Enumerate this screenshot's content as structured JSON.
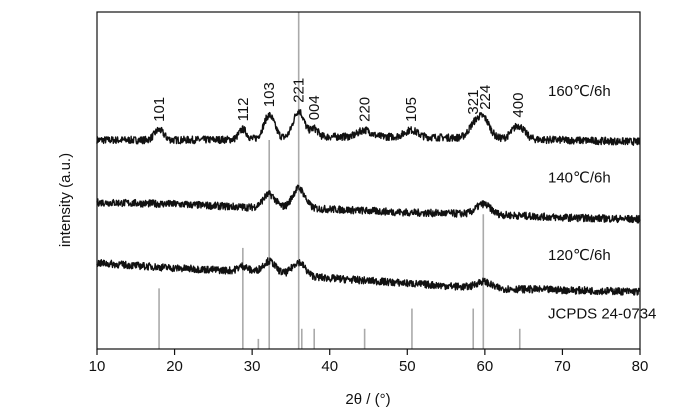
{
  "chart_data": {
    "type": "line",
    "xlabel": "2θ / (°)",
    "ylabel": "intensity (a.u.)",
    "xlim": [
      10,
      80
    ],
    "xticks": [
      10,
      20,
      30,
      40,
      50,
      60,
      70,
      80
    ],
    "grid": false,
    "series": [
      {
        "name": "160℃/6h",
        "color": "#111111",
        "baseline": [
          [
            10,
            0.62
          ],
          [
            20,
            0.62
          ],
          [
            30,
            0.622
          ],
          [
            40,
            0.63
          ],
          [
            50,
            0.63
          ],
          [
            60,
            0.625
          ],
          [
            70,
            0.62
          ],
          [
            80,
            0.615
          ]
        ],
        "peaks": [
          [
            18.0,
            0.03,
            0.6
          ],
          [
            28.8,
            0.03,
            0.5
          ],
          [
            32.2,
            0.07,
            0.7
          ],
          [
            36.0,
            0.08,
            0.7
          ],
          [
            38.0,
            0.025,
            0.5
          ],
          [
            44.5,
            0.02,
            0.8
          ],
          [
            50.5,
            0.02,
            0.8
          ],
          [
            58.5,
            0.03,
            0.7
          ],
          [
            59.8,
            0.06,
            0.8
          ],
          [
            64.3,
            0.04,
            0.8
          ]
        ]
      },
      {
        "name": "140℃/6h",
        "color": "#111111",
        "baseline": [
          [
            10,
            0.435
          ],
          [
            20,
            0.43
          ],
          [
            30,
            0.42
          ],
          [
            40,
            0.415
          ],
          [
            50,
            0.405
          ],
          [
            60,
            0.4
          ],
          [
            70,
            0.39
          ],
          [
            80,
            0.385
          ]
        ],
        "peaks": [
          [
            32.2,
            0.04,
            0.8
          ],
          [
            36.0,
            0.06,
            0.8
          ],
          [
            59.8,
            0.03,
            0.9
          ]
        ]
      },
      {
        "name": "120℃/6h",
        "color": "#111111",
        "baseline": [
          [
            10,
            0.255
          ],
          [
            20,
            0.24
          ],
          [
            30,
            0.23
          ],
          [
            40,
            0.21
          ],
          [
            50,
            0.195
          ],
          [
            60,
            0.18
          ],
          [
            70,
            0.175
          ],
          [
            80,
            0.17
          ]
        ],
        "peaks": [
          [
            28.8,
            0.015,
            0.6
          ],
          [
            32.2,
            0.035,
            0.8
          ],
          [
            36.0,
            0.04,
            0.8
          ],
          [
            59.8,
            0.02,
            0.9
          ]
        ]
      }
    ],
    "reference": {
      "name": "JCPDS 24-0734",
      "color": "#aaaaaa",
      "lines": [
        {
          "x": 18.0,
          "height": 0.18
        },
        {
          "x": 28.8,
          "height": 0.3
        },
        {
          "x": 30.8,
          "height": 0.03
        },
        {
          "x": 32.2,
          "height": 0.62
        },
        {
          "x": 36.0,
          "height": 1.0
        },
        {
          "x": 36.4,
          "height": 0.06
        },
        {
          "x": 38.0,
          "height": 0.06
        },
        {
          "x": 44.5,
          "height": 0.06
        },
        {
          "x": 50.6,
          "height": 0.12
        },
        {
          "x": 58.5,
          "height": 0.12
        },
        {
          "x": 59.8,
          "height": 0.4
        },
        {
          "x": 64.5,
          "height": 0.06
        }
      ]
    },
    "peak_labels": [
      {
        "text": "101",
        "x": 18.0
      },
      {
        "text": "112",
        "x": 28.8
      },
      {
        "text": "103",
        "x": 32.2
      },
      {
        "text": "221",
        "x": 36.0
      },
      {
        "text": "004",
        "x": 38.0
      },
      {
        "text": "220",
        "x": 44.5
      },
      {
        "text": "105",
        "x": 50.5
      },
      {
        "text": "321",
        "x": 58.5
      },
      {
        "text": "224",
        "x": 60.0
      },
      {
        "text": "400",
        "x": 64.3
      }
    ],
    "annotations": [
      {
        "text": "160℃/6h",
        "series": 0
      },
      {
        "text": "140℃/6h",
        "series": 1
      },
      {
        "text": "120℃/6h",
        "series": 2
      },
      {
        "text": "JCPDS 24-0734",
        "series": "reference"
      }
    ]
  }
}
